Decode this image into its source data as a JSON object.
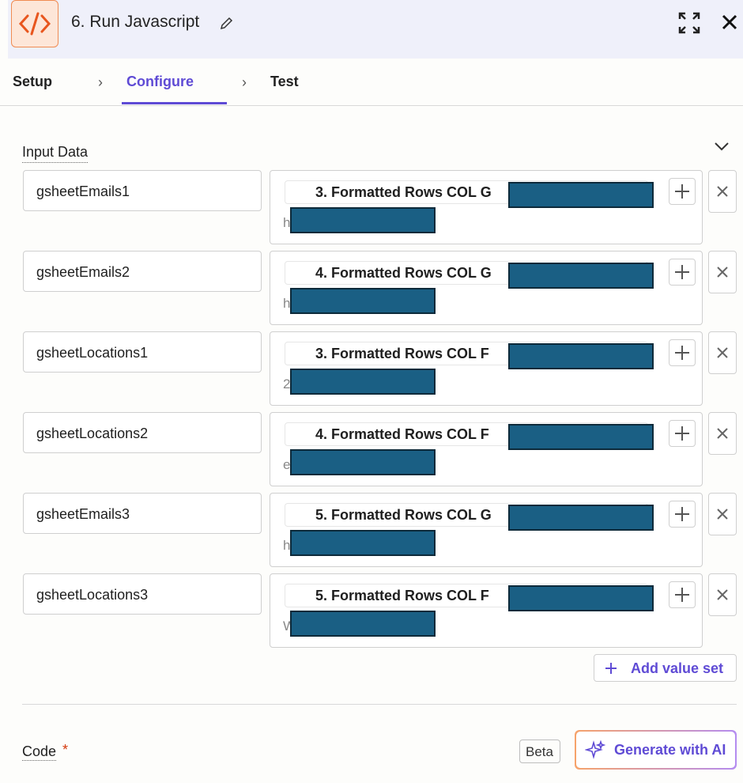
{
  "header": {
    "title": "6. Run Javascript"
  },
  "tabs": [
    "Setup",
    "Configure",
    "Test"
  ],
  "section": {
    "title": "Input Data"
  },
  "rows": [
    {
      "key": "gsheetEmails1",
      "value": "3. Formatted Rows COL G",
      "value_line2": "h"
    },
    {
      "key": "gsheetEmails2",
      "value": "4. Formatted Rows COL G",
      "value_line2": "h"
    },
    {
      "key": "gsheetLocations1",
      "value": "3. Formatted Rows COL F",
      "value_line2": "2"
    },
    {
      "key": "gsheetLocations2",
      "value": "4. Formatted Rows COL F",
      "value_line2": "e"
    },
    {
      "key": "gsheetEmails3",
      "value": "5. Formatted Rows COL G",
      "value_line2": "h"
    },
    {
      "key": "gsheetLocations3",
      "value": "5. Formatted Rows COL F",
      "value_line2": "W"
    }
  ],
  "add_button": "Add value set",
  "code": {
    "label": "Code",
    "required": "*"
  },
  "beta": "Beta",
  "generate_button": "Generate with AI"
}
